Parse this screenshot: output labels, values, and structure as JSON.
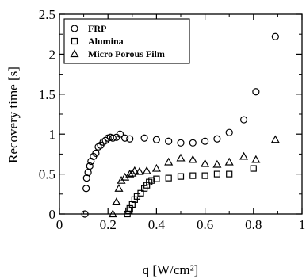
{
  "chart_data": {
    "type": "scatter",
    "xlabel": "q [W/cm²]",
    "ylabel": "Recovery time [s]",
    "xlim": [
      0,
      1
    ],
    "ylim": [
      0,
      2.5
    ],
    "xticks": [
      "0",
      "0.2",
      "0.4",
      "0.6",
      "0.8",
      "1"
    ],
    "yticks": [
      "0",
      "0.5",
      "1",
      "1.5",
      "2",
      "2.5"
    ],
    "grid": false,
    "legend_position": "top-left",
    "series": [
      {
        "name": "FRP",
        "marker": "circle",
        "points": [
          [
            0.105,
            0.0
          ],
          [
            0.11,
            0.32
          ],
          [
            0.112,
            0.45
          ],
          [
            0.118,
            0.52
          ],
          [
            0.125,
            0.6
          ],
          [
            0.13,
            0.66
          ],
          [
            0.14,
            0.72
          ],
          [
            0.15,
            0.76
          ],
          [
            0.16,
            0.84
          ],
          [
            0.17,
            0.86
          ],
          [
            0.18,
            0.9
          ],
          [
            0.19,
            0.92
          ],
          [
            0.2,
            0.95
          ],
          [
            0.21,
            0.96
          ],
          [
            0.22,
            0.95
          ],
          [
            0.235,
            0.96
          ],
          [
            0.25,
            1.0
          ],
          [
            0.27,
            0.95
          ],
          [
            0.29,
            0.94
          ],
          [
            0.35,
            0.95
          ],
          [
            0.4,
            0.93
          ],
          [
            0.45,
            0.91
          ],
          [
            0.5,
            0.89
          ],
          [
            0.55,
            0.89
          ],
          [
            0.6,
            0.91
          ],
          [
            0.65,
            0.94
          ],
          [
            0.7,
            1.02
          ],
          [
            0.76,
            1.18
          ],
          [
            0.81,
            1.53
          ],
          [
            0.89,
            2.22
          ]
        ]
      },
      {
        "name": "Alumina",
        "marker": "square",
        "points": [
          [
            0.28,
            0.0
          ],
          [
            0.285,
            0.04
          ],
          [
            0.29,
            0.07
          ],
          [
            0.3,
            0.12
          ],
          [
            0.31,
            0.18
          ],
          [
            0.32,
            0.22
          ],
          [
            0.335,
            0.26
          ],
          [
            0.35,
            0.32
          ],
          [
            0.36,
            0.36
          ],
          [
            0.37,
            0.4
          ],
          [
            0.38,
            0.42
          ],
          [
            0.4,
            0.44
          ],
          [
            0.45,
            0.45
          ],
          [
            0.5,
            0.47
          ],
          [
            0.55,
            0.48
          ],
          [
            0.6,
            0.48
          ],
          [
            0.65,
            0.5
          ],
          [
            0.7,
            0.5
          ],
          [
            0.8,
            0.57
          ]
        ]
      },
      {
        "name": "Micro Porous Film",
        "marker": "triangle",
        "points": [
          [
            0.22,
            0.0
          ],
          [
            0.235,
            0.15
          ],
          [
            0.245,
            0.32
          ],
          [
            0.255,
            0.42
          ],
          [
            0.27,
            0.46
          ],
          [
            0.29,
            0.5
          ],
          [
            0.3,
            0.51
          ],
          [
            0.31,
            0.54
          ],
          [
            0.33,
            0.53
          ],
          [
            0.36,
            0.54
          ],
          [
            0.4,
            0.57
          ],
          [
            0.45,
            0.65
          ],
          [
            0.5,
            0.7
          ],
          [
            0.55,
            0.68
          ],
          [
            0.6,
            0.63
          ],
          [
            0.65,
            0.62
          ],
          [
            0.7,
            0.65
          ],
          [
            0.76,
            0.72
          ],
          [
            0.81,
            0.68
          ],
          [
            0.89,
            0.93
          ]
        ]
      }
    ]
  }
}
